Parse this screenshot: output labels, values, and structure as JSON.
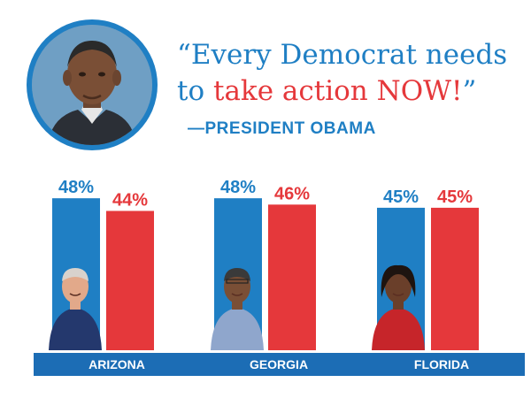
{
  "quote": {
    "open_mark": "“",
    "line1": "Every Democrat needs",
    "line2_start": "to ",
    "line2_red": "take action NOW!",
    "close_mark": "”",
    "attribution": "—PRESIDENT OBAMA"
  },
  "colors": {
    "blue": "#1f7fc4",
    "red": "#e5383b",
    "label_bar": "#1c6db5"
  },
  "chart_data": {
    "type": "bar",
    "ylim": [
      0,
      60
    ],
    "groups": [
      {
        "state": "ARIZONA",
        "values": [
          48,
          44
        ],
        "labels": [
          "48%",
          "44%"
        ]
      },
      {
        "state": "GEORGIA",
        "values": [
          48,
          46
        ],
        "labels": [
          "48%",
          "46%"
        ]
      },
      {
        "state": "FLORIDA",
        "values": [
          45,
          45
        ],
        "labels": [
          "45%",
          "45%"
        ]
      }
    ],
    "series_colors": [
      "#1f7fc4",
      "#e5383b"
    ]
  }
}
